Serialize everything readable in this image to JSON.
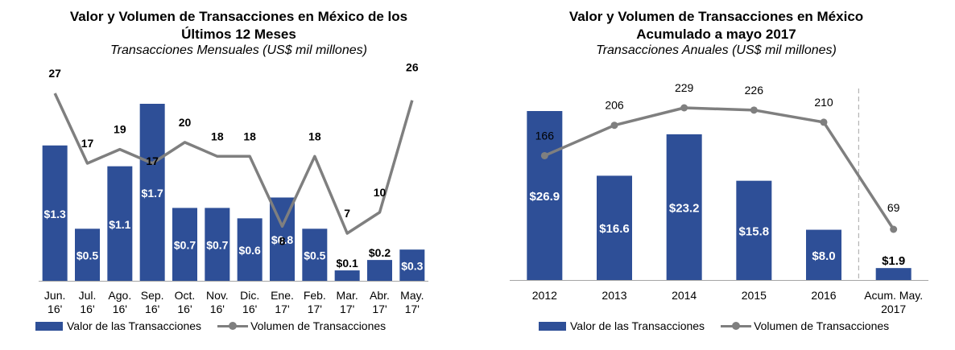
{
  "colors": {
    "bar": "#2E4F97",
    "line": "#7F7F7F",
    "axis": "#A6A6A6"
  },
  "chart_data": [
    {
      "type": "bar",
      "title_line1": "Valor y Volumen de Transacciones en México de los",
      "title_line2": "Últimos 12 Meses",
      "subtitle": "Transacciones Mensuales (US$ mil millones)",
      "categories": [
        [
          "Jun.",
          "16'"
        ],
        [
          "Jul.",
          "16'"
        ],
        [
          "Ago.",
          "16'"
        ],
        [
          "Sep.",
          "16'"
        ],
        [
          "Oct.",
          "16'"
        ],
        [
          "Nov.",
          "16'"
        ],
        [
          "Dic.",
          "16'"
        ],
        [
          "Ene.",
          "17'"
        ],
        [
          "Feb.",
          "17'"
        ],
        [
          "Mar.",
          "17'"
        ],
        [
          "Abr.",
          "17'"
        ],
        [
          "May.",
          "17'"
        ]
      ],
      "series": [
        {
          "name": "Valor de las Transacciones",
          "type": "bar",
          "values": [
            1.3,
            0.5,
            1.1,
            1.7,
            0.7,
            0.7,
            0.6,
            0.8,
            0.5,
            0.1,
            0.2,
            0.3
          ],
          "labels": [
            "$1.3",
            "$0.5",
            "$1.1",
            "$1.7",
            "$0.7",
            "$0.7",
            "$0.6",
            "$0.8",
            "$0.5",
            "$0.1",
            "$0.2",
            "$0.3"
          ]
        },
        {
          "name": "Volumen de Transacciones",
          "type": "line",
          "values": [
            27,
            17,
            19,
            17,
            20,
            18,
            18,
            8,
            18,
            7,
            10,
            26
          ],
          "labels": [
            "27",
            "17",
            "19",
            "17",
            "20",
            "18",
            "18",
            "8",
            "18",
            "7",
            "10",
            "26"
          ]
        }
      ],
      "legend": "bottom"
    },
    {
      "type": "bar",
      "title_line1": "Valor y Volumen de Transacciones en México",
      "title_line2": "Acumulado a mayo 2017",
      "subtitle": "Transacciones Anuales (US$ mil millones)",
      "categories": [
        [
          "2012"
        ],
        [
          "2013"
        ],
        [
          "2014"
        ],
        [
          "2015"
        ],
        [
          "2016"
        ],
        [
          "Acum. May.",
          "2017"
        ]
      ],
      "series": [
        {
          "name": "Valor de las Transacciones",
          "type": "bar",
          "values": [
            26.9,
            16.6,
            23.2,
            15.8,
            8.0,
            1.9
          ],
          "labels": [
            "$26.9",
            "$16.6",
            "$23.2",
            "$15.8",
            "$8.0",
            "$1.9"
          ]
        },
        {
          "name": "Volumen de Transacciones",
          "type": "line",
          "values": [
            166,
            206,
            229,
            226,
            210,
            69
          ],
          "labels": [
            "166",
            "206",
            "229",
            "226",
            "210",
            "69"
          ]
        }
      ],
      "legend": "bottom"
    }
  ]
}
